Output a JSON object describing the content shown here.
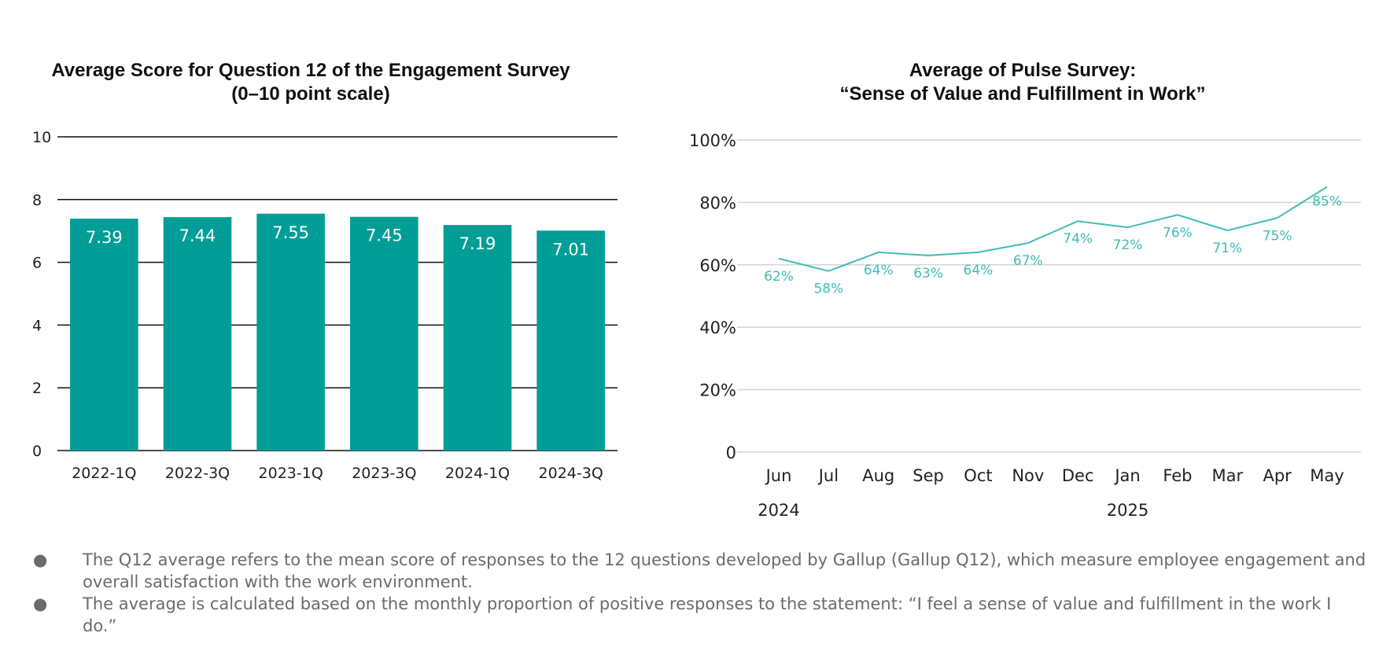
{
  "chart_data": [
    {
      "type": "bar",
      "title": [
        "Average Score for Question 12 of the Engagement Survey",
        "(0–10 point scale)"
      ],
      "categories": [
        "2022-1Q",
        "2022-3Q",
        "2023-1Q",
        "2023-3Q",
        "2024-1Q",
        "2024-3Q"
      ],
      "values": [
        7.39,
        7.44,
        7.55,
        7.45,
        7.19,
        7.01
      ],
      "value_labels": [
        "7.39",
        "7.44",
        "7.55",
        "7.45",
        "7.19",
        "7.01"
      ],
      "ylim": [
        0,
        10
      ],
      "yticks": [
        0,
        2,
        4,
        6,
        8,
        10
      ],
      "ytick_labels": [
        "0",
        "2",
        "4",
        "6",
        "8",
        "10"
      ],
      "grid": true,
      "colors": {
        "bar": "#009e96",
        "grid": "#111111",
        "label": "#ffffff"
      }
    },
    {
      "type": "line",
      "title": [
        "Average of Pulse Survey:",
        "“Sense of Value and Fulfillment in Work”"
      ],
      "categories": [
        "Jun",
        "Jul",
        "Aug",
        "Sep",
        "Oct",
        "Nov",
        "Dec",
        "Jan",
        "Feb",
        "Mar",
        "Apr",
        "May"
      ],
      "year_labels": [
        {
          "label": "2024",
          "category": "Jun"
        },
        {
          "label": "2025",
          "category": "Jan"
        }
      ],
      "values": [
        62,
        58,
        64,
        63,
        64,
        67,
        74,
        72,
        76,
        71,
        75,
        85
      ],
      "value_labels": [
        "62%",
        "58%",
        "64%",
        "63%",
        "64%",
        "67%",
        "74%",
        "72%",
        "76%",
        "71%",
        "75%",
        "85%"
      ],
      "ylim": [
        0,
        100
      ],
      "yticks": [
        0,
        20,
        40,
        60,
        80,
        100
      ],
      "ytick_labels": [
        "0",
        "20%",
        "40%",
        "60%",
        "80%",
        "100%"
      ],
      "grid": true,
      "colors": {
        "line": "#3fbdb2",
        "grid": "#d4d4d4",
        "label": "#3fbdb2"
      }
    }
  ],
  "notes": [
    "The Q12 average refers to the mean score of responses to the 12 questions developed by Gallup (Gallup Q12), which measure employee engagement and overall satisfaction with the work environment.",
    "The average is calculated based on the monthly proportion of positive responses to the statement: “I feel a sense of value and fulfillment in the work I do.”"
  ],
  "bullet": "●"
}
